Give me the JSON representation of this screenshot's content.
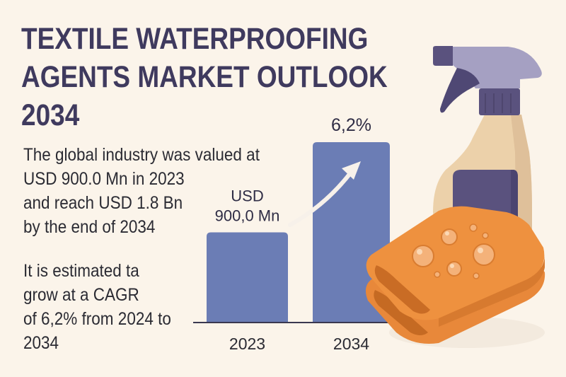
{
  "header": {
    "title_lines": [
      "TEXTILE WATERPROOFING",
      "AGENTS MARKET OUTLOOK",
      "2034"
    ]
  },
  "description": {
    "valuation_lines": [
      "The global industry was valued at",
      "USD 900.0 Mn in 2023",
      "and reach USD 1.8 Bn",
      "by the end of 2034"
    ],
    "growth_lines": [
      "It is estimated ta",
      "grow at a CAGR",
      "of 6,2% from 2024 to",
      "2034"
    ]
  },
  "colors": {
    "background": "#fbf4ea",
    "title": "#3f3a5e",
    "bar": "#6b7db5",
    "arrow": "#f7f1ea",
    "axis": "#3a3850",
    "cloth": "#ec8f3c",
    "bottle": "#ecd1aa",
    "trigger": "#a5a0c2",
    "cap": "#5a527e"
  },
  "chart_data": {
    "type": "bar",
    "title": "",
    "xlabel": "",
    "ylabel": "",
    "categories": [
      "2023",
      "2034"
    ],
    "values": [
      900.0,
      1800.0
    ],
    "unit": "USD Mn",
    "ylim": [
      0,
      1800
    ],
    "grid": false,
    "data_labels": [
      {
        "category": "2023",
        "lines": [
          "USD",
          "900,0 Mn"
        ]
      },
      {
        "category": "2034",
        "lines": [
          "6,2%"
        ]
      }
    ],
    "annotations": [
      {
        "type": "growth-arrow",
        "from": "2023",
        "to": "2034",
        "label": "6,2%"
      }
    ]
  }
}
